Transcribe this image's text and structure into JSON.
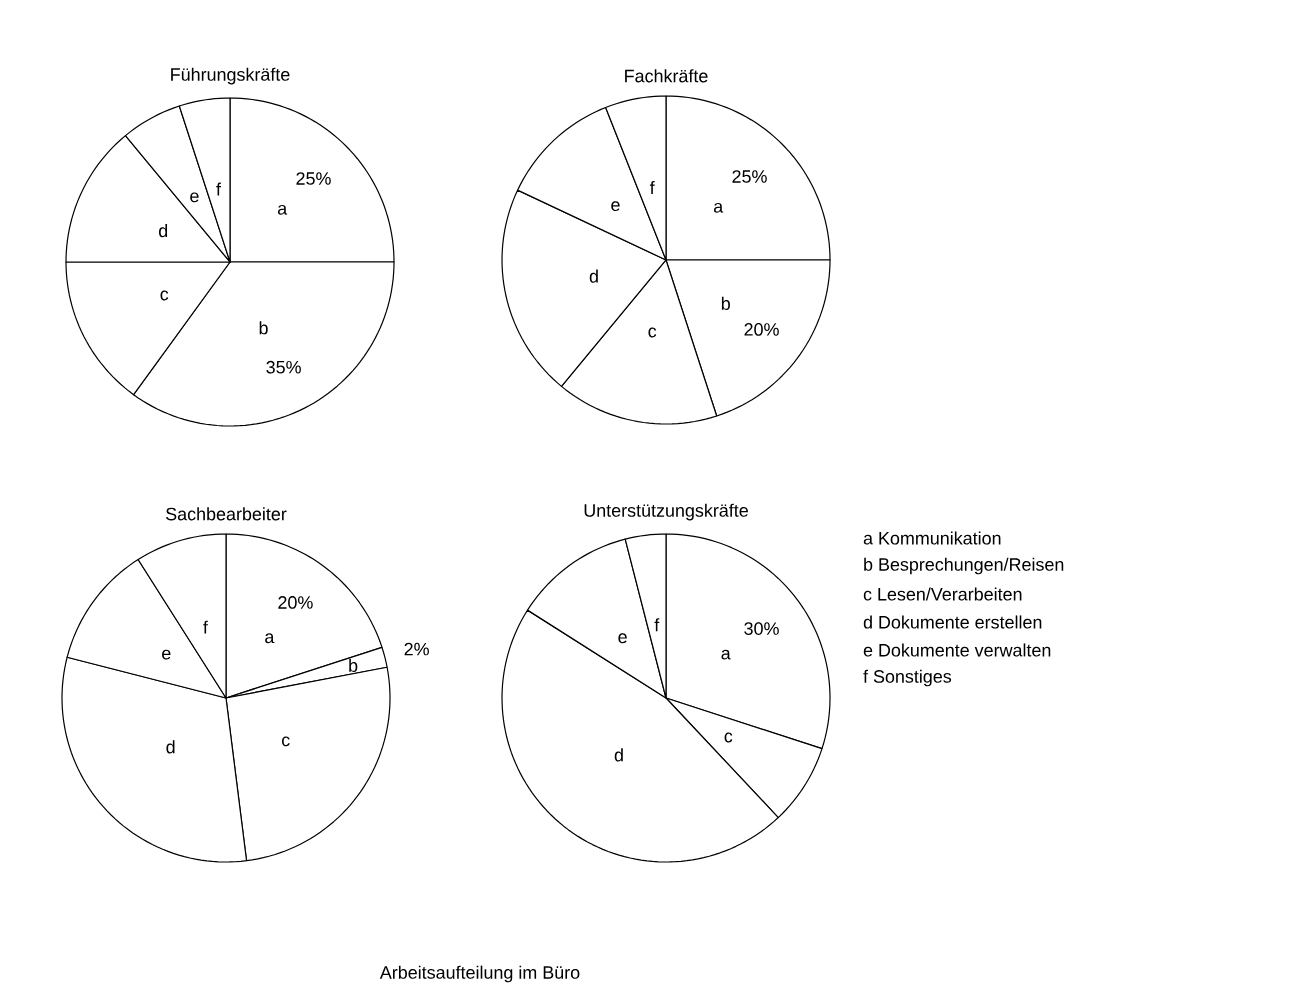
{
  "chart_data": [
    {
      "type": "pie",
      "title": "Führungskräfte",
      "categories": [
        "a",
        "b",
        "c",
        "d",
        "e",
        "f"
      ],
      "values": [
        25,
        35,
        15,
        14,
        6,
        5
      ],
      "value_labels": [
        "25%",
        "35%",
        null,
        null,
        null,
        null
      ],
      "colors": [
        "#ffffff",
        "#ffffff",
        "#ffffff",
        "#ffffff",
        "#ffffff",
        "#ffffff"
      ]
    },
    {
      "type": "pie",
      "title": "Fachkräfte",
      "categories": [
        "a",
        "b",
        "c",
        "d",
        "e",
        "f"
      ],
      "values": [
        25,
        20,
        16,
        21,
        12,
        6
      ],
      "value_labels": [
        "25%",
        "20%",
        null,
        null,
        null,
        null
      ],
      "colors": [
        "#ffffff",
        "#ffffff",
        "#ffffff",
        "#ffffff",
        "#ffffff",
        "#ffffff"
      ]
    },
    {
      "type": "pie",
      "title": "Sachbearbeiter",
      "categories": [
        "a",
        "b",
        "c",
        "d",
        "e",
        "f"
      ],
      "values": [
        20,
        2,
        26,
        31,
        12,
        9
      ],
      "value_labels": [
        "20%",
        "2%",
        null,
        null,
        null,
        null
      ],
      "colors": [
        "#ffffff",
        "#ffffff",
        "#ffffff",
        "#ffffff",
        "#ffffff",
        "#ffffff"
      ]
    },
    {
      "type": "pie",
      "title": "Unterstützungskräfte",
      "categories": [
        "a",
        "c",
        "d",
        "e",
        "f"
      ],
      "values": [
        30,
        8,
        46,
        12,
        4
      ],
      "value_labels": [
        "30%",
        null,
        null,
        null,
        null
      ],
      "colors": [
        "#ffffff",
        "#ffffff",
        "#ffffff",
        "#ffffff",
        "#ffffff"
      ]
    },
    {
      "type": "other",
      "annotations": [
        "a Kommunikation",
        "b Besprechungen/Reisen",
        "c Lesen/Verarbeiten",
        "d Dokumente erstellen",
        "e Dokumente verwalten",
        "f Sonstiges",
        "Arbeitsaufteilung im Büro"
      ]
    }
  ]
}
